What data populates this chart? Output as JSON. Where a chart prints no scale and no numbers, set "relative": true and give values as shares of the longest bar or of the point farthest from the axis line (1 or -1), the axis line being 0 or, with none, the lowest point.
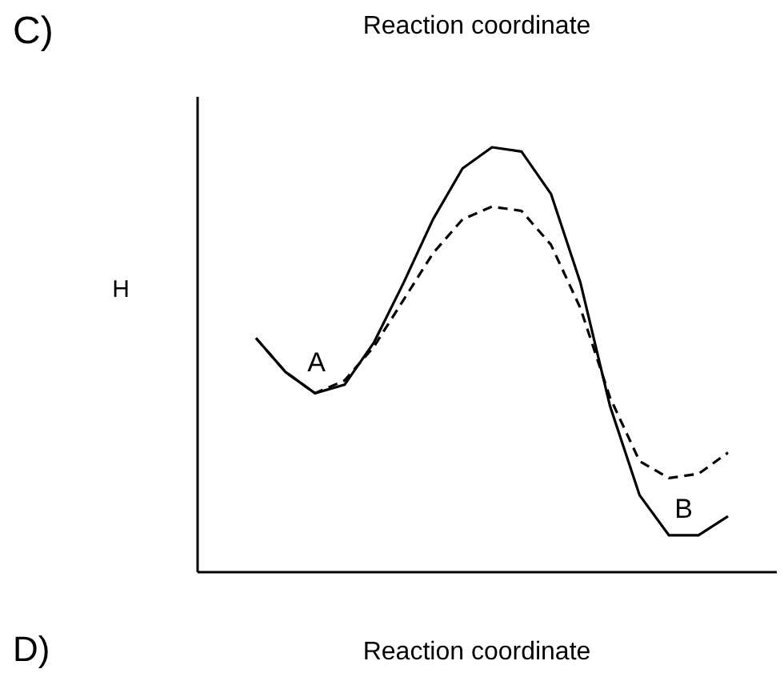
{
  "chart_data": {
    "type": "line",
    "title": "C)",
    "subtitle": "Reaction coordinate",
    "ylabel": "H",
    "relative": true,
    "grid": false,
    "marker": "none",
    "categories": [
      null,
      null,
      null,
      null,
      null,
      null,
      null,
      null,
      null,
      null,
      null,
      null,
      null,
      null,
      null,
      null,
      null
    ],
    "series": [
      {
        "color": "#000000",
        "line_style": "solid",
        "values": [
          0.55,
          0.47,
          0.42,
          0.44,
          0.54,
          0.68,
          0.83,
          0.95,
          1,
          0.99,
          0.89,
          0.68,
          0.39,
          0.18,
          0.085,
          0.085,
          0.13
        ]
      },
      {
        "color": "#000000",
        "line_style": "dashed",
        "values": [
          0.55,
          0.47,
          0.42,
          0.45,
          0.53,
          0.64,
          0.75,
          0.83,
          0.86,
          0.85,
          0.77,
          0.62,
          0.41,
          0.26,
          0.22,
          0.23,
          0.28
        ]
      }
    ],
    "annotations": [
      "A",
      "B",
      "D)",
      "Reaction coordinate"
    ]
  }
}
